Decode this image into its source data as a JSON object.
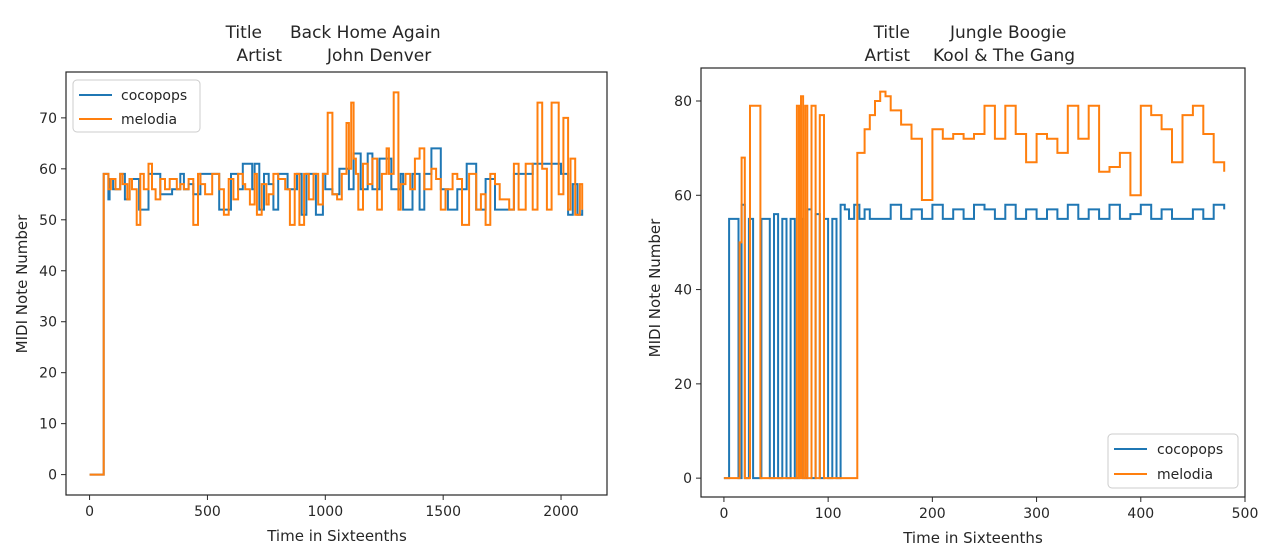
{
  "chart_data": [
    {
      "type": "line",
      "title_lines": [
        {
          "label": "Title",
          "value": "Back Home Again"
        },
        {
          "label": "Artist",
          "value": "John Denver"
        }
      ],
      "xlabel": "Time in Sixteenths",
      "ylabel": "MIDI Note Number",
      "xlim": [
        -100,
        2195
      ],
      "ylim": [
        -4,
        79
      ],
      "xticks": [
        0,
        500,
        1000,
        1500,
        2000
      ],
      "yticks": [
        0,
        10,
        20,
        30,
        40,
        50,
        60,
        70
      ],
      "grid": false,
      "legend": {
        "position": "upper left"
      },
      "series": [
        {
          "name": "cocopops",
          "color": "#1f77b4",
          "x": [
            0,
            55,
            60,
            80,
            85,
            100,
            130,
            150,
            170,
            210,
            250,
            300,
            350,
            385,
            400,
            420,
            440,
            470,
            500,
            550,
            600,
            630,
            650,
            690,
            700,
            720,
            740,
            760,
            780,
            800,
            840,
            880,
            900,
            920,
            960,
            990,
            1000,
            1030,
            1060,
            1100,
            1120,
            1150,
            1180,
            1200,
            1230,
            1280,
            1320,
            1330,
            1370,
            1400,
            1420,
            1450,
            1490,
            1520,
            1560,
            1600,
            1640,
            1680,
            1720,
            1760,
            1800,
            1850,
            1880,
            1920,
            1950,
            1980,
            2000,
            2030,
            2050,
            2070,
            2090
          ],
          "y": [
            0,
            0,
            59,
            54,
            58,
            56,
            59,
            54,
            58,
            52,
            59,
            55,
            56,
            59,
            56,
            57,
            55,
            59,
            59,
            52,
            59,
            56,
            61,
            56,
            61,
            52,
            59,
            57,
            52,
            59,
            56,
            59,
            51,
            59,
            51,
            59,
            56,
            55,
            60,
            56,
            63,
            56,
            63,
            56,
            62,
            56,
            59,
            52,
            59,
            52,
            59,
            64,
            56,
            52,
            56,
            61,
            52,
            58,
            52,
            52,
            59,
            59,
            61,
            61,
            61,
            61,
            59,
            51,
            57,
            51,
            52
          ]
        },
        {
          "name": "melodia",
          "color": "#ff7f0e",
          "x": [
            0,
            55,
            60,
            80,
            90,
            110,
            130,
            140,
            160,
            170,
            180,
            200,
            215,
            230,
            250,
            265,
            280,
            300,
            320,
            340,
            370,
            385,
            400,
            420,
            440,
            460,
            470,
            490,
            520,
            550,
            570,
            590,
            610,
            630,
            650,
            660,
            680,
            700,
            710,
            730,
            750,
            760,
            780,
            800,
            830,
            850,
            870,
            890,
            910,
            930,
            950,
            970,
            990,
            1010,
            1030,
            1050,
            1070,
            1090,
            1100,
            1110,
            1120,
            1130,
            1140,
            1160,
            1180,
            1200,
            1220,
            1240,
            1260,
            1270,
            1290,
            1310,
            1320,
            1340,
            1360,
            1380,
            1400,
            1420,
            1450,
            1470,
            1490,
            1510,
            1540,
            1560,
            1580,
            1610,
            1640,
            1660,
            1680,
            1700,
            1720,
            1740,
            1780,
            1800,
            1820,
            1850,
            1880,
            1900,
            1920,
            1940,
            1960,
            1990,
            2010,
            2030,
            2040,
            2060,
            2080,
            2090
          ],
          "y": [
            0,
            0,
            59,
            56,
            58,
            56,
            59,
            57,
            54,
            58,
            56,
            49,
            59,
            56,
            61,
            56,
            54,
            58,
            56,
            58,
            56,
            57,
            56,
            58,
            49,
            59,
            57,
            55,
            59,
            56,
            51,
            58,
            54,
            59,
            57,
            56,
            53,
            59,
            51,
            57,
            53,
            55,
            59,
            58,
            56,
            49,
            59,
            49,
            59,
            54,
            59,
            53,
            59,
            71,
            55,
            54,
            59,
            69,
            60,
            73,
            62,
            59,
            52,
            61,
            57,
            62,
            52,
            59,
            64,
            59,
            75,
            52,
            57,
            59,
            56,
            62,
            64,
            56,
            60,
            58,
            52,
            56,
            59,
            58,
            49,
            59,
            52,
            55,
            49,
            59,
            57,
            54,
            52,
            61,
            52,
            61,
            52,
            73,
            60,
            52,
            73,
            55,
            70,
            52,
            62,
            51,
            57,
            52
          ]
        }
      ]
    },
    {
      "type": "line",
      "title_lines": [
        {
          "label": "Title",
          "value": "Jungle Boogie"
        },
        {
          "label": "Artist",
          "value": "Kool & The Gang"
        }
      ],
      "xlabel": "Time in Sixteenths",
      "ylabel": "MIDI Note Number",
      "xlim": [
        -22,
        500
      ],
      "ylim": [
        -4,
        87
      ],
      "xticks": [
        0,
        100,
        200,
        300,
        400,
        500
      ],
      "yticks": [
        0,
        20,
        40,
        60,
        80
      ],
      "grid": false,
      "legend": {
        "position": "lower right"
      },
      "series": [
        {
          "name": "cocopops",
          "color": "#1f77b4",
          "x": [
            0,
            5,
            10,
            14,
            17,
            20,
            24,
            28,
            32,
            36,
            40,
            44,
            48,
            52,
            56,
            60,
            64,
            68,
            72,
            76,
            80,
            84,
            88,
            92,
            96,
            100,
            104,
            108,
            112,
            116,
            120,
            125,
            130,
            135,
            140,
            150,
            160,
            170,
            180,
            190,
            200,
            210,
            220,
            230,
            240,
            250,
            260,
            270,
            280,
            290,
            300,
            310,
            320,
            330,
            340,
            350,
            360,
            370,
            380,
            390,
            400,
            410,
            420,
            430,
            440,
            450,
            460,
            470,
            480
          ],
          "y": [
            0,
            55,
            55,
            0,
            58,
            0,
            55,
            0,
            0,
            55,
            55,
            0,
            56,
            0,
            55,
            0,
            55,
            0,
            55,
            0,
            57,
            0,
            56,
            0,
            55,
            0,
            55,
            0,
            58,
            57,
            55,
            58,
            55,
            57,
            55,
            55,
            58,
            55,
            57,
            55,
            58,
            55,
            57,
            55,
            58,
            57,
            55,
            58,
            55,
            57,
            55,
            57,
            55,
            58,
            55,
            57,
            55,
            58,
            55,
            56,
            58,
            55,
            57,
            55,
            55,
            57,
            55,
            58,
            57
          ]
        },
        {
          "name": "melodia",
          "color": "#ff7f0e",
          "x": [
            0,
            10,
            15,
            17,
            20,
            25,
            30,
            35,
            40,
            45,
            50,
            55,
            60,
            65,
            70,
            72,
            74,
            76,
            78,
            80,
            84,
            88,
            92,
            96,
            100,
            104,
            108,
            112,
            116,
            120,
            124,
            126,
            128,
            130,
            135,
            140,
            145,
            150,
            155,
            160,
            170,
            180,
            190,
            200,
            210,
            220,
            230,
            240,
            250,
            260,
            270,
            280,
            290,
            300,
            310,
            320,
            330,
            340,
            350,
            360,
            370,
            380,
            390,
            400,
            410,
            420,
            430,
            440,
            450,
            460,
            470,
            480
          ],
          "y": [
            0,
            0,
            50,
            68,
            0,
            79,
            79,
            0,
            0,
            0,
            0,
            0,
            0,
            0,
            79,
            0,
            81,
            0,
            79,
            0,
            79,
            0,
            77,
            0,
            0,
            0,
            0,
            0,
            0,
            0,
            0,
            0,
            69,
            69,
            74,
            77,
            80,
            82,
            81,
            78,
            75,
            72,
            59,
            74,
            72,
            73,
            72,
            73,
            79,
            72,
            79,
            73,
            67,
            73,
            72,
            69,
            79,
            72,
            79,
            65,
            66,
            69,
            60,
            79,
            77,
            74,
            67,
            77,
            79,
            73,
            67,
            65
          ]
        }
      ]
    }
  ]
}
